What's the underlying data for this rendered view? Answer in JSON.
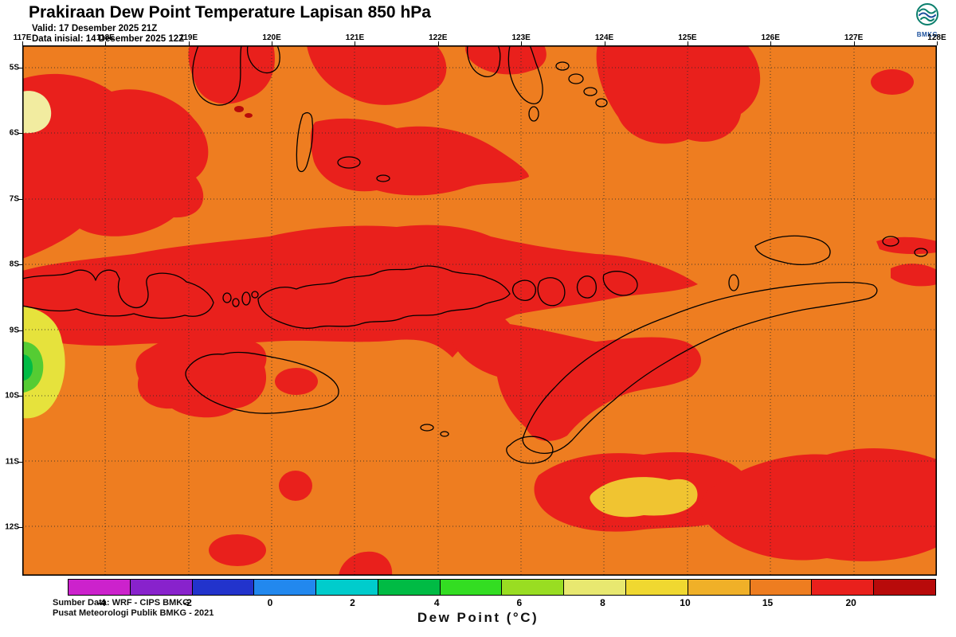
{
  "header": {
    "title": "Prakiraan Dew Point Temperature Lapisan 850 hPa",
    "valid_line": "Valid: 17 Desember 2025 21Z",
    "init_line": "Data inisial: 14 Desember 2025 12Z",
    "logo_text": "BMKG"
  },
  "map": {
    "lon_labels": [
      "117E",
      "118E",
      "119E",
      "120E",
      "121E",
      "122E",
      "123E",
      "124E",
      "125E",
      "126E",
      "127E",
      "128E"
    ],
    "lat_labels": [
      "5S",
      "6S",
      "7S",
      "8S",
      "9S",
      "10S",
      "11S",
      "12S"
    ],
    "source_line1": "Sumber Data: WRF - CIPS BMKG",
    "source_line2": "Pusat Meteorologi Publik BMKG - 2021"
  },
  "colorbar": {
    "segments": [
      "#CC22CC",
      "#8822CC",
      "#2233CC",
      "#2288EE",
      "#00CCCC",
      "#00BB44",
      "#33DD22",
      "#99DD22",
      "#E8E870",
      "#F0D830",
      "#F0B028",
      "#EE7D20",
      "#E9201C",
      "#B80A0A"
    ],
    "tick_labels": [
      "-4",
      "-2",
      "0",
      "2",
      "4",
      "6",
      "8",
      "10",
      "15",
      "20"
    ],
    "tick_positions_pct": [
      3.9,
      13.8,
      23.3,
      32.8,
      42.5,
      52.0,
      61.6,
      71.1,
      80.6,
      90.2
    ],
    "caption": "Dew Point (°C)",
    "unit": "°C"
  },
  "colors": {
    "background": "#FFFFFF",
    "map_base": "#EE7D20",
    "red": "#E9201C",
    "dark_red": "#B80A0A",
    "yellow": "#E6E23C",
    "pale_yellow": "#F2ECA0",
    "golden": "#F0C431",
    "green": "#55CC33",
    "bright_green": "#00BB44",
    "coastline": "#000000",
    "grid": "#2B2B2B",
    "logo_teal": "#0B7F6D",
    "logo_blue": "#1A4F9C"
  }
}
